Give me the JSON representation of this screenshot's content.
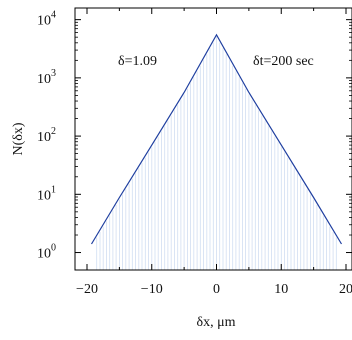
{
  "chart_data": {
    "type": "line",
    "title": "",
    "xlabel": "δx, μm",
    "ylabel": "N(δx)",
    "xlim": [
      -20,
      20
    ],
    "ylim_log10": [
      -0.3,
      4.2
    ],
    "log_y": true,
    "x_ticks": [
      {
        "value": -20,
        "label": "−20"
      },
      {
        "value": -10,
        "label": "−10"
      },
      {
        "value": 0,
        "label": "0"
      },
      {
        "value": 10,
        "label": "10"
      },
      {
        "value": 20,
        "label": "20"
      }
    ],
    "y_ticks": [
      {
        "exp": 0,
        "base": "10",
        "sup": "0"
      },
      {
        "exp": 1,
        "base": "10",
        "sup": "1"
      },
      {
        "exp": 2,
        "base": "10",
        "sup": "2"
      },
      {
        "exp": 3,
        "base": "10",
        "sup": "3"
      },
      {
        "exp": 4,
        "base": "10",
        "sup": "4"
      }
    ],
    "annotations": {
      "delta": "δ=1.09",
      "dt": "δt=200 sec"
    },
    "series": [
      {
        "x": [
          -19.3,
          -15,
          -10,
          -5,
          0,
          5,
          10,
          15,
          19.3
        ],
        "y": [
          1.4,
          8.8,
          70,
          560,
          5500,
          560,
          70,
          8.8,
          1.4
        ]
      }
    ],
    "colors": {
      "line": "#1f3fa0",
      "bars": "#c6d6ef",
      "axes": "#000000"
    }
  }
}
